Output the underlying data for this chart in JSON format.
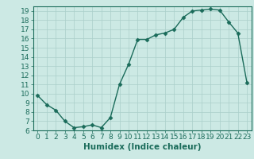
{
  "title": "",
  "xlabel": "Humidex (Indice chaleur)",
  "ylabel": "",
  "x": [
    0,
    1,
    2,
    3,
    4,
    5,
    6,
    7,
    8,
    9,
    10,
    11,
    12,
    13,
    14,
    15,
    16,
    17,
    18,
    19,
    20,
    21,
    22,
    23
  ],
  "y": [
    9.8,
    8.8,
    8.2,
    7.0,
    6.3,
    6.4,
    6.6,
    6.3,
    7.4,
    11.0,
    13.2,
    15.9,
    15.9,
    16.4,
    16.6,
    17.0,
    18.3,
    19.0,
    19.1,
    19.2,
    19.1,
    17.8,
    16.6,
    11.2
  ],
  "line_color": "#1a6b5a",
  "marker": "D",
  "marker_size": 2.5,
  "bg_color": "#cce9e4",
  "grid_color": "#aacfca",
  "ylim": [
    6,
    19.5
  ],
  "xlim": [
    -0.5,
    23.5
  ],
  "yticks": [
    6,
    7,
    8,
    9,
    10,
    11,
    12,
    13,
    14,
    15,
    16,
    17,
    18,
    19
  ],
  "xticks": [
    0,
    1,
    2,
    3,
    4,
    5,
    6,
    7,
    8,
    9,
    10,
    11,
    12,
    13,
    14,
    15,
    16,
    17,
    18,
    19,
    20,
    21,
    22,
    23
  ],
  "tick_fontsize": 6.5,
  "xlabel_fontsize": 7.5
}
